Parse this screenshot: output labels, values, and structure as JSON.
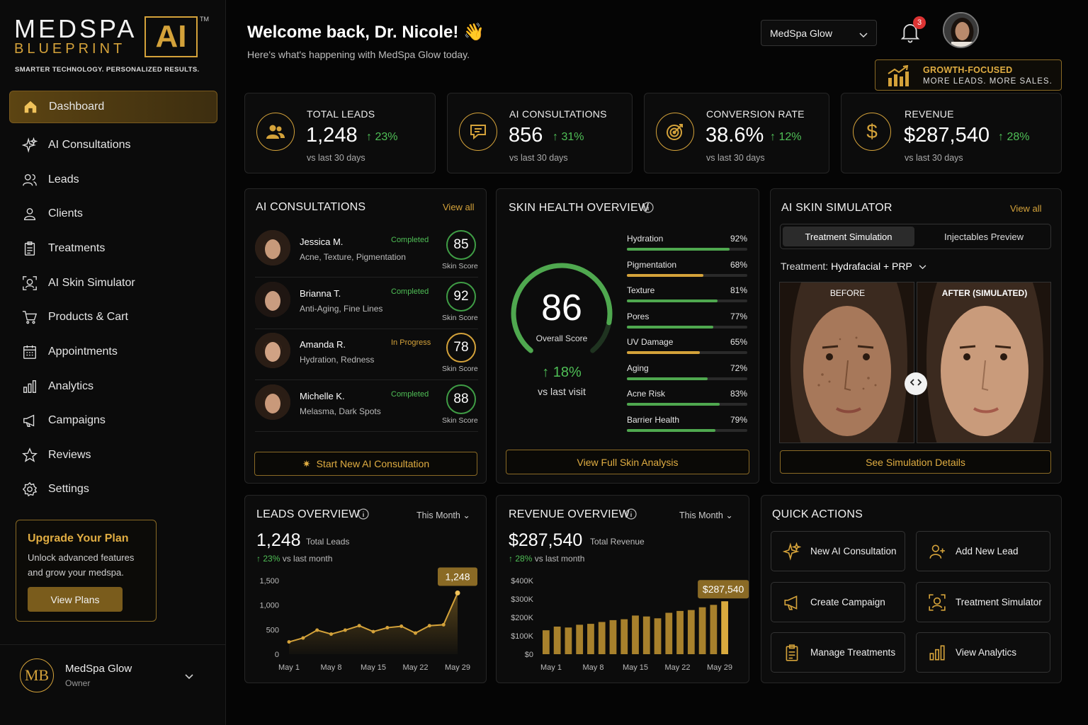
{
  "brand": {
    "line1": "MEDSPA",
    "line2": "BLUEPRINT",
    "ai": "AI",
    "tm": "TM",
    "tagline": "SMARTER TECHNOLOGY. PERSONALIZED RESULTS."
  },
  "nav": [
    {
      "label": "Dashboard",
      "icon": "home-icon"
    },
    {
      "label": "AI Consultations",
      "icon": "sparkle-icon"
    },
    {
      "label": "Leads",
      "icon": "users-icon"
    },
    {
      "label": "Clients",
      "icon": "user-icon"
    },
    {
      "label": "Treatments",
      "icon": "clipboard-icon"
    },
    {
      "label": "AI Skin Simulator",
      "icon": "face-scan-icon"
    },
    {
      "label": "Products & Cart",
      "icon": "cart-icon"
    },
    {
      "label": "Appointments",
      "icon": "calendar-icon"
    },
    {
      "label": "Analytics",
      "icon": "bar-chart-icon"
    },
    {
      "label": "Campaigns",
      "icon": "megaphone-icon"
    },
    {
      "label": "Reviews",
      "icon": "star-icon"
    },
    {
      "label": "Settings",
      "icon": "gear-icon"
    }
  ],
  "upgrade": {
    "title": "Upgrade Your Plan",
    "desc": "Unlock advanced features and grow your medspa.",
    "button": "View Plans"
  },
  "account": {
    "initials": "MB",
    "name": "MedSpa Glow",
    "role": "Owner"
  },
  "header": {
    "welcome": "Welcome back, Dr. Nicole! 👋",
    "subtitle": "Here's what's happening with MedSpa Glow today.",
    "spa_select": "MedSpa Glow",
    "notifications": "3"
  },
  "growth": {
    "line1": "GROWTH-FOCUSED",
    "line2": "MORE LEADS. MORE SALES."
  },
  "stats": [
    {
      "title": "TOTAL LEADS",
      "value": "1,248",
      "delta": "23%",
      "label": "vs last 30 days"
    },
    {
      "title": "AI CONSULTATIONS",
      "value": "856",
      "delta": "31%",
      "label": "vs last 30 days"
    },
    {
      "title": "CONVERSION RATE",
      "value": "38.6%",
      "delta": "12%",
      "label": "vs last 30 days"
    },
    {
      "title": "REVENUE",
      "value": "$287,540",
      "delta": "28%",
      "label": "vs last 30 days"
    }
  ],
  "consultations": {
    "title": "AI CONSULTATIONS",
    "view_all": "View all",
    "score_label": "Skin Score",
    "rows": [
      {
        "name": "Jessica M.",
        "tags": "Acne, Texture, Pigmentation",
        "status": "Completed",
        "score": "85"
      },
      {
        "name": "Brianna T.",
        "tags": "Anti-Aging, Fine Lines",
        "status": "Completed",
        "score": "92"
      },
      {
        "name": "Amanda R.",
        "tags": "Hydration, Redness",
        "status": "In Progress",
        "score": "78"
      },
      {
        "name": "Michelle K.",
        "tags": "Melasma, Dark Spots",
        "status": "Completed",
        "score": "88"
      }
    ],
    "button": "Start New AI Consultation"
  },
  "skin": {
    "title": "SKIN HEALTH OVERVIEW",
    "score": "86",
    "score_label": "Overall Score",
    "delta": "18%",
    "delta_label": "vs last visit",
    "score_fraction": 0.86,
    "metrics": [
      {
        "name": "Hydration",
        "pct": "92%",
        "value": 92,
        "color": "#4fa84f"
      },
      {
        "name": "Pigmentation",
        "pct": "68%",
        "value": 68,
        "color": "#d4a23a"
      },
      {
        "name": "Texture",
        "pct": "81%",
        "value": 81,
        "color": "#4fa84f"
      },
      {
        "name": "Pores",
        "pct": "77%",
        "value": 77,
        "color": "#4fa84f"
      },
      {
        "name": "UV Damage",
        "pct": "65%",
        "value": 65,
        "color": "#d4a23a"
      },
      {
        "name": "Aging",
        "pct": "72%",
        "value": 72,
        "color": "#4fa84f"
      },
      {
        "name": "Acne Risk",
        "pct": "83%",
        "value": 83,
        "color": "#4fa84f"
      },
      {
        "name": "Barrier Health",
        "pct": "79%",
        "value": 79,
        "color": "#4fa84f"
      }
    ],
    "button": "View Full Skin Analysis"
  },
  "simulator": {
    "title": "AI SKIN SIMULATOR",
    "view_all": "View all",
    "tab1": "Treatment Simulation",
    "tab2": "Injectables Preview",
    "treatment_label": "Treatment:",
    "treatment_value": "Hydrafacial + PRP",
    "before": "BEFORE",
    "after": "AFTER (SIMULATED)",
    "button": "See Simulation Details"
  },
  "leads_overview": {
    "title": "LEADS OVERVIEW",
    "period": "This Month",
    "value": "1,248",
    "value_label": "Total Leads",
    "delta": "23%",
    "delta_label": "vs last month"
  },
  "revenue_overview": {
    "title": "REVENUE OVERVIEW",
    "period": "This Month",
    "value": "$287,540",
    "value_label": "Total Revenue",
    "delta": "28%",
    "delta_label": "vs last month"
  },
  "chart_data": [
    {
      "type": "area",
      "x": [
        "May 1",
        "May 3",
        "May 5",
        "May 8",
        "May 10",
        "May 12",
        "May 15",
        "May 17",
        "May 19",
        "May 22",
        "May 24",
        "May 26",
        "May 29"
      ],
      "values": [
        250,
        330,
        490,
        410,
        490,
        580,
        460,
        540,
        570,
        430,
        580,
        600,
        1248
      ],
      "xticks": [
        "May 1",
        "May 8",
        "May 15",
        "May 22",
        "May 29"
      ],
      "yticks": [
        "0",
        "500",
        "1,000",
        "1,500"
      ],
      "ylim": [
        0,
        1500
      ],
      "callout": "1,248",
      "grid": false
    },
    {
      "type": "bar",
      "x": [
        "1",
        "2",
        "3",
        "4",
        "5",
        "6",
        "7",
        "8",
        "9",
        "10",
        "11",
        "12",
        "13",
        "14",
        "15",
        "16",
        "17"
      ],
      "values": [
        130000,
        150000,
        145000,
        160000,
        165000,
        175000,
        185000,
        190000,
        210000,
        205000,
        195000,
        225000,
        235000,
        240000,
        255000,
        268000,
        287540
      ],
      "xticks": [
        "May 1",
        "May 8",
        "May 15",
        "May 22",
        "May 29"
      ],
      "yticks": [
        "$0",
        "$100K",
        "$200K",
        "$300K",
        "$400K"
      ],
      "ylim": [
        0,
        400000
      ],
      "callout": "$287,540",
      "grid": false
    }
  ],
  "quick_actions": {
    "title": "QUICK ACTIONS",
    "items": [
      {
        "label": "New AI Consultation",
        "icon": "sparkle-icon"
      },
      {
        "label": "Add New Lead",
        "icon": "add-user-icon"
      },
      {
        "label": "Create Campaign",
        "icon": "megaphone-icon"
      },
      {
        "label": "Treatment Simulator",
        "icon": "face-scan-icon"
      },
      {
        "label": "Manage Treatments",
        "icon": "clipboard-icon"
      },
      {
        "label": "View Analytics",
        "icon": "bar-chart-icon"
      }
    ]
  }
}
